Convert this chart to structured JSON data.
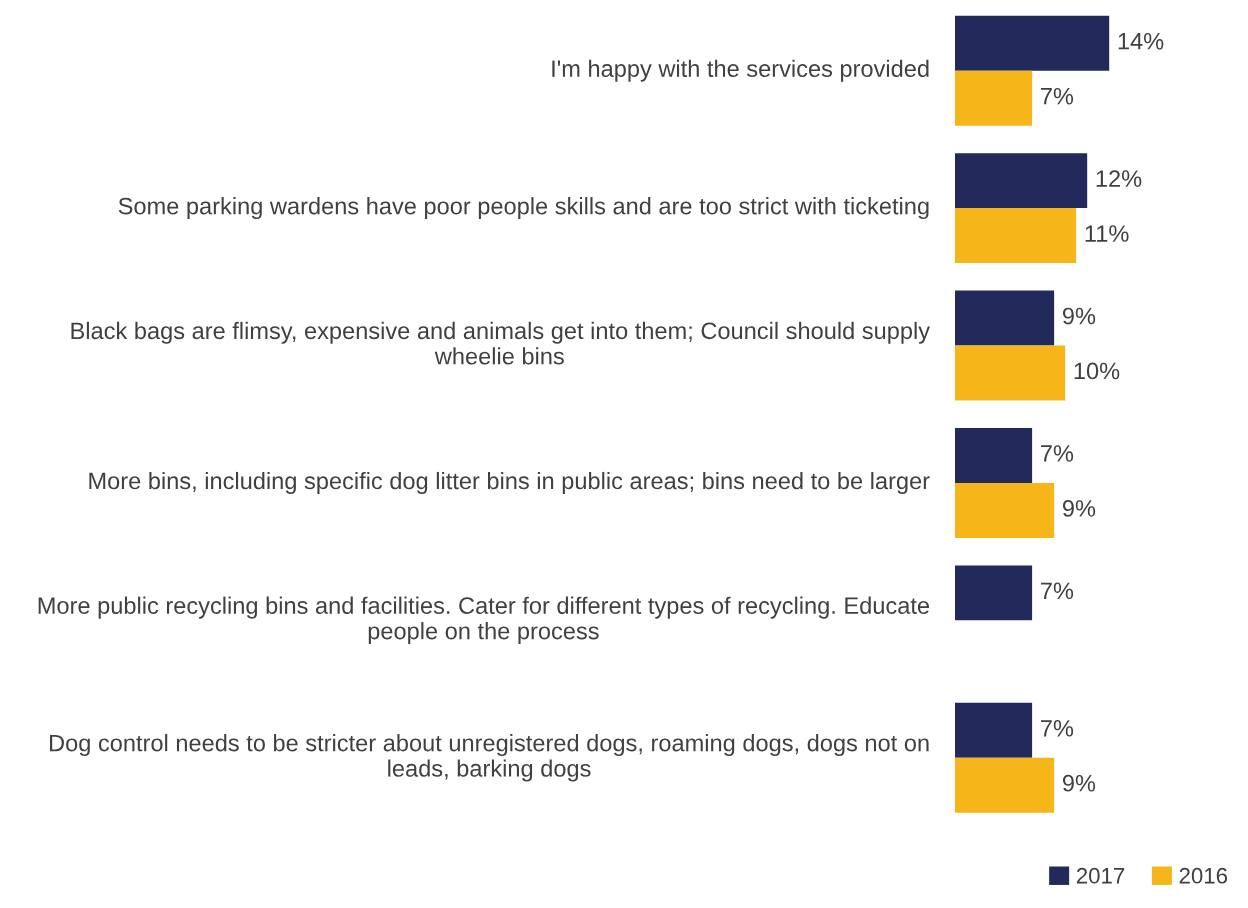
{
  "chart_data": {
    "type": "bar",
    "orientation": "horizontal",
    "legend": "bottom right",
    "grid": false,
    "categories": [
      "I'm happy with the services provided",
      "Some parking wardens have poor people skills and are too strict with ticketing",
      "Black bags are flimsy, expensive and animals get into them; Council should supply wheelie bins",
      "More bins, including specific dog litter bins in public areas; bins need to be larger",
      "More public recycling bins and facilities. Cater for different types of recycling. Educate people on the process",
      "Dog control needs to be stricter about unregistered dogs, roaming dogs, dogs not on leads, barking dogs"
    ],
    "series": [
      {
        "name": "2017",
        "color": "#222a5c",
        "values": [
          14,
          12,
          9,
          7,
          7,
          7
        ],
        "value_labels": [
          "14%",
          "12%",
          "9%",
          "7%",
          "7%",
          "7%"
        ]
      },
      {
        "name": "2016",
        "color": "#f6b61a",
        "values": [
          7,
          11,
          10,
          9,
          null,
          9
        ],
        "value_labels": [
          "7%",
          "11%",
          "10%",
          "9%",
          null,
          "9%"
        ]
      }
    ]
  }
}
